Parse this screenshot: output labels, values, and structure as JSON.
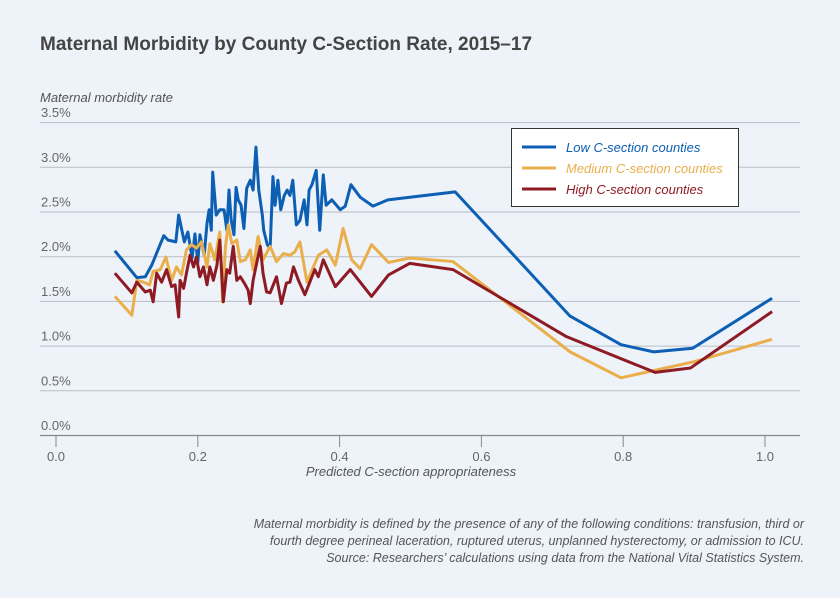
{
  "chart_data": {
    "type": "line",
    "title": "Maternal Morbidity by County C-Section Rate, 2015–17",
    "ylabel": "Maternal morbidity rate",
    "xlabel": "Predicted C-section appropriateness",
    "xlim": [
      0,
      1.05
    ],
    "ylim": [
      0,
      3.5
    ],
    "xticks": [
      "0.0",
      "0.2",
      "0.4",
      "0.6",
      "0.8",
      "1.0"
    ],
    "yticks": [
      "0.0%",
      "0.5%",
      "1.0%",
      "1.5%",
      "2.0%",
      "2.5%",
      "3.0%",
      "3.5%"
    ],
    "grid": "horizontal",
    "legend_position": "top-right",
    "series": [
      {
        "name": "Low C-section counties",
        "color": "#0d5fb3",
        "points": [
          [
            0.083,
            2.06
          ],
          [
            0.114,
            1.76
          ],
          [
            0.126,
            1.77
          ],
          [
            0.135,
            1.9
          ],
          [
            0.152,
            2.23
          ],
          [
            0.158,
            2.18
          ],
          [
            0.164,
            2.17
          ],
          [
            0.169,
            2.16
          ],
          [
            0.173,
            2.46
          ],
          [
            0.181,
            2.16
          ],
          [
            0.186,
            2.27
          ],
          [
            0.192,
            1.98
          ],
          [
            0.196,
            2.25
          ],
          [
            0.2,
            1.93
          ],
          [
            0.203,
            2.24
          ],
          [
            0.209,
            2.01
          ],
          [
            0.213,
            2.37
          ],
          [
            0.216,
            2.52
          ],
          [
            0.219,
            2.29
          ],
          [
            0.221,
            2.94
          ],
          [
            0.226,
            2.46
          ],
          [
            0.231,
            2.52
          ],
          [
            0.237,
            2.52
          ],
          [
            0.241,
            2.29
          ],
          [
            0.244,
            2.74
          ],
          [
            0.247,
            2.41
          ],
          [
            0.251,
            2.24
          ],
          [
            0.254,
            2.77
          ],
          [
            0.257,
            2.63
          ],
          [
            0.261,
            2.57
          ],
          [
            0.265,
            2.31
          ],
          [
            0.269,
            2.76
          ],
          [
            0.274,
            2.85
          ],
          [
            0.278,
            2.74
          ],
          [
            0.282,
            3.22
          ],
          [
            0.286,
            2.74
          ],
          [
            0.291,
            2.46
          ],
          [
            0.293,
            2.29
          ],
          [
            0.298,
            2.13
          ],
          [
            0.302,
            2.09
          ],
          [
            0.306,
            2.89
          ],
          [
            0.309,
            2.57
          ],
          [
            0.313,
            2.85
          ],
          [
            0.317,
            2.52
          ],
          [
            0.322,
            2.68
          ],
          [
            0.326,
            2.74
          ],
          [
            0.33,
            2.68
          ],
          [
            0.334,
            2.85
          ],
          [
            0.339,
            2.35
          ],
          [
            0.344,
            2.4
          ],
          [
            0.35,
            2.63
          ],
          [
            0.354,
            2.35
          ],
          [
            0.357,
            2.74
          ],
          [
            0.361,
            2.8
          ],
          [
            0.367,
            2.96
          ],
          [
            0.372,
            2.29
          ],
          [
            0.377,
            2.91
          ],
          [
            0.381,
            2.57
          ],
          [
            0.389,
            2.63
          ],
          [
            0.401,
            2.52
          ],
          [
            0.408,
            2.56
          ],
          [
            0.416,
            2.8
          ],
          [
            0.429,
            2.66
          ],
          [
            0.447,
            2.56
          ],
          [
            0.468,
            2.63
          ],
          [
            0.563,
            2.72
          ],
          [
            0.725,
            1.33
          ],
          [
            0.797,
            1.01
          ],
          [
            0.843,
            0.93
          ],
          [
            0.898,
            0.97
          ],
          [
            1.01,
            1.53
          ]
        ]
      },
      {
        "name": "Medium C-section counties",
        "color": "#eaae4a",
        "points": [
          [
            0.083,
            1.55
          ],
          [
            0.107,
            1.34
          ],
          [
            0.114,
            1.73
          ],
          [
            0.123,
            1.71
          ],
          [
            0.132,
            1.68
          ],
          [
            0.137,
            1.83
          ],
          [
            0.147,
            1.85
          ],
          [
            0.155,
            1.99
          ],
          [
            0.163,
            1.73
          ],
          [
            0.17,
            1.88
          ],
          [
            0.177,
            1.79
          ],
          [
            0.184,
            2.07
          ],
          [
            0.191,
            2.13
          ],
          [
            0.198,
            2.09
          ],
          [
            0.205,
            2.16
          ],
          [
            0.213,
            1.88
          ],
          [
            0.217,
            2.14
          ],
          [
            0.224,
            1.96
          ],
          [
            0.231,
            2.27
          ],
          [
            0.235,
            1.49
          ],
          [
            0.239,
            2.11
          ],
          [
            0.243,
            2.35
          ],
          [
            0.248,
            2.14
          ],
          [
            0.255,
            2.18
          ],
          [
            0.26,
            1.94
          ],
          [
            0.267,
            1.96
          ],
          [
            0.274,
            2.07
          ],
          [
            0.278,
            1.85
          ],
          [
            0.285,
            2.22
          ],
          [
            0.292,
            1.96
          ],
          [
            0.302,
            2.11
          ],
          [
            0.311,
            1.94
          ],
          [
            0.321,
            2.03
          ],
          [
            0.33,
            2.01
          ],
          [
            0.337,
            2.05
          ],
          [
            0.344,
            2.16
          ],
          [
            0.354,
            1.71
          ],
          [
            0.37,
            2.01
          ],
          [
            0.382,
            2.07
          ],
          [
            0.394,
            1.9
          ],
          [
            0.405,
            2.31
          ],
          [
            0.417,
            1.96
          ],
          [
            0.429,
            1.86
          ],
          [
            0.445,
            2.13
          ],
          [
            0.469,
            1.93
          ],
          [
            0.499,
            1.98
          ],
          [
            0.56,
            1.94
          ],
          [
            0.725,
            0.93
          ],
          [
            0.797,
            0.64
          ],
          [
            0.9,
            0.82
          ],
          [
            1.01,
            1.07
          ]
        ]
      },
      {
        "name": "High C-section counties",
        "color": "#8e1b24",
        "points": [
          [
            0.083,
            1.81
          ],
          [
            0.107,
            1.59
          ],
          [
            0.114,
            1.71
          ],
          [
            0.126,
            1.6
          ],
          [
            0.133,
            1.62
          ],
          [
            0.137,
            1.49
          ],
          [
            0.142,
            1.81
          ],
          [
            0.149,
            1.71
          ],
          [
            0.156,
            1.85
          ],
          [
            0.163,
            1.66
          ],
          [
            0.168,
            1.68
          ],
          [
            0.173,
            1.32
          ],
          [
            0.175,
            1.73
          ],
          [
            0.18,
            1.64
          ],
          [
            0.184,
            1.81
          ],
          [
            0.189,
            2.01
          ],
          [
            0.194,
            1.88
          ],
          [
            0.198,
            1.99
          ],
          [
            0.203,
            1.77
          ],
          [
            0.208,
            1.88
          ],
          [
            0.213,
            1.68
          ],
          [
            0.217,
            1.88
          ],
          [
            0.222,
            1.73
          ],
          [
            0.227,
            1.9
          ],
          [
            0.231,
            2.18
          ],
          [
            0.236,
            1.49
          ],
          [
            0.241,
            1.85
          ],
          [
            0.245,
            1.81
          ],
          [
            0.25,
            2.11
          ],
          [
            0.255,
            1.73
          ],
          [
            0.26,
            1.77
          ],
          [
            0.267,
            1.68
          ],
          [
            0.271,
            1.62
          ],
          [
            0.274,
            1.47
          ],
          [
            0.278,
            1.73
          ],
          [
            0.283,
            1.92
          ],
          [
            0.288,
            2.11
          ],
          [
            0.292,
            1.81
          ],
          [
            0.297,
            1.6
          ],
          [
            0.302,
            1.59
          ],
          [
            0.311,
            1.77
          ],
          [
            0.318,
            1.47
          ],
          [
            0.325,
            1.7
          ],
          [
            0.33,
            1.71
          ],
          [
            0.335,
            1.88
          ],
          [
            0.342,
            1.73
          ],
          [
            0.351,
            1.57
          ],
          [
            0.365,
            1.85
          ],
          [
            0.37,
            1.77
          ],
          [
            0.377,
            1.96
          ],
          [
            0.394,
            1.66
          ],
          [
            0.415,
            1.85
          ],
          [
            0.445,
            1.55
          ],
          [
            0.469,
            1.79
          ],
          [
            0.499,
            1.92
          ],
          [
            0.56,
            1.85
          ],
          [
            0.72,
            1.1
          ],
          [
            0.845,
            0.7
          ],
          [
            0.895,
            0.75
          ],
          [
            1.01,
            1.38
          ]
        ]
      }
    ]
  },
  "footnote": [
    "Maternal morbidity is defined by the presence of any of the following conditions: transfusion, third or",
    "fourth degree perineal laceration, ruptured uterus, unplanned hysterectomy, or admission to ICU.",
    "Source: Researchers’ calculations using data from the National Vital Statistics System."
  ]
}
